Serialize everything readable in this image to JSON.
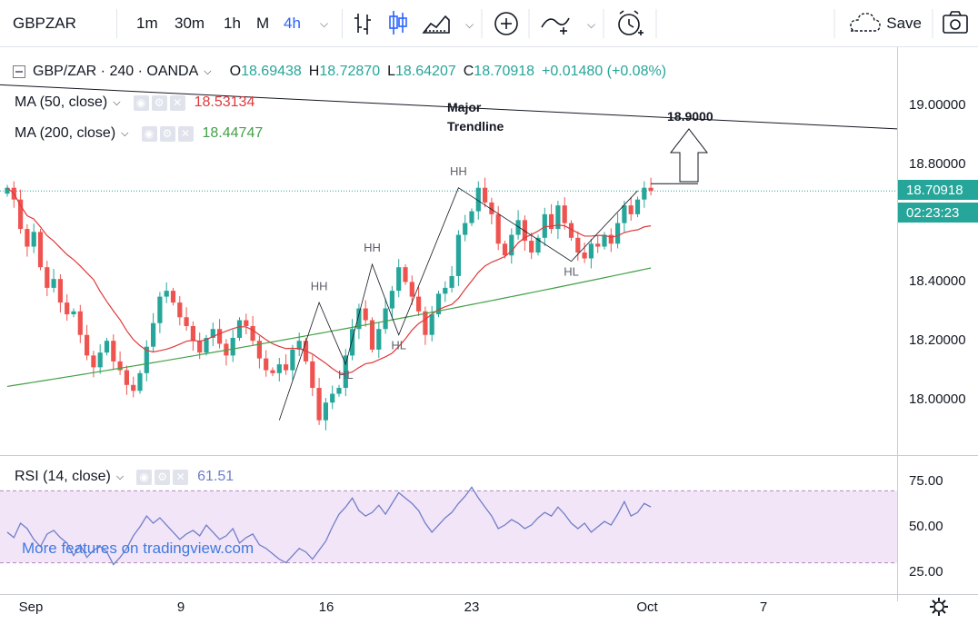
{
  "toolbar": {
    "symbol": "GBPZAR",
    "intervals": [
      "1m",
      "30m",
      "1h",
      "M",
      "4h"
    ],
    "active_interval": "4h",
    "save_label": "Save",
    "icons": [
      "bar-style-icon",
      "candles-icon",
      "area-icon",
      "add-indicator-icon",
      "compare-icon",
      "alert-clock-icon",
      "cloud-icon",
      "camera-icon"
    ]
  },
  "legend": {
    "title": "GBP/ZAR · 240 · OANDA",
    "o_label": "O",
    "o": "18.69438",
    "h_label": "H",
    "h": "18.72870",
    "l_label": "L",
    "l": "18.64207",
    "c_label": "C",
    "c": "18.70918",
    "change": "+0.01480 (+0.08%)"
  },
  "ma50": {
    "label": "MA (50, close)",
    "value": "18.53134",
    "color": "#e0393b"
  },
  "ma200": {
    "label": "MA (200, close)",
    "value": "18.44747",
    "color": "#43a047"
  },
  "price_axis": {
    "ticks": [
      "19.00000",
      "18.80000",
      "18.40000",
      "18.20000",
      "18.00000"
    ],
    "last_price": "18.70918",
    "countdown": "02:23:23"
  },
  "rsi": {
    "label": "RSI (14, close)",
    "value": "61.51",
    "ticks": [
      "75.00",
      "50.00",
      "25.00"
    ]
  },
  "time_axis": {
    "ticks": [
      "Sep",
      "9",
      "16",
      "23",
      "Oct",
      "7"
    ]
  },
  "watermark": "More features on tradingview.com",
  "annotations": {
    "trendline_label": [
      "Major",
      "Trendline"
    ],
    "target": "18.9000",
    "swing_labels": [
      "HH",
      "HL",
      "HH",
      "HL",
      "HH",
      "HL"
    ]
  },
  "colors": {
    "up": "#26a69a",
    "down": "#ef5350",
    "accent": "#2962ff",
    "rsi": "#6f7fc7"
  },
  "chart_data": {
    "type": "candlestick",
    "symbol": "GBP/ZAR",
    "interval": "240",
    "ylim": [
      17.85,
      19.1
    ],
    "closes": [
      18.72,
      18.68,
      18.58,
      18.52,
      18.57,
      18.45,
      18.38,
      18.41,
      18.33,
      18.29,
      18.3,
      18.22,
      18.15,
      18.11,
      18.16,
      18.2,
      18.13,
      18.1,
      18.05,
      18.03,
      18.09,
      18.18,
      18.26,
      18.35,
      18.37,
      18.33,
      18.28,
      18.25,
      18.2,
      18.16,
      18.21,
      18.24,
      18.19,
      18.15,
      18.21,
      18.27,
      18.25,
      18.2,
      18.14,
      18.1,
      18.09,
      18.12,
      18.1,
      18.17,
      18.2,
      18.13,
      18.04,
      17.93,
      17.99,
      18.02,
      18.04,
      18.15,
      18.24,
      18.31,
      18.27,
      18.17,
      18.24,
      18.31,
      18.37,
      18.45,
      18.4,
      18.35,
      18.3,
      18.22,
      18.29,
      18.36,
      18.38,
      18.42,
      18.56,
      18.6,
      18.64,
      18.72,
      18.67,
      18.63,
      18.53,
      18.49,
      18.56,
      18.61,
      18.54,
      18.5,
      18.55,
      18.63,
      18.58,
      18.66,
      18.6,
      18.55,
      18.5,
      18.48,
      18.53,
      18.52,
      18.56,
      18.53,
      18.6,
      18.66,
      18.63,
      18.68,
      18.72,
      18.71
    ],
    "ma50_last": 18.53134,
    "ma200_last": 18.44747,
    "major_trendline": [
      [
        0,
        19.07
      ],
      [
        110,
        18.92
      ]
    ],
    "rsi_series": [
      47,
      44,
      52,
      49,
      43,
      39,
      46,
      48,
      44,
      41,
      34,
      40,
      33,
      37,
      39,
      36,
      29,
      33,
      38,
      45,
      50,
      56,
      52,
      55,
      51,
      47,
      43,
      46,
      48,
      45,
      51,
      47,
      43,
      45,
      49,
      41,
      44,
      46,
      40,
      38,
      35,
      32,
      30,
      34,
      38,
      36,
      32,
      37,
      42,
      50,
      57,
      61,
      66,
      59,
      56,
      58,
      62,
      57,
      63,
      69,
      66,
      63,
      59,
      52,
      47,
      51,
      55,
      58,
      63,
      67,
      72,
      66,
      61,
      56,
      49,
      51,
      54,
      52,
      49,
      51,
      55,
      58,
      56,
      61,
      57,
      52,
      49,
      52,
      47,
      50,
      53,
      51,
      57,
      64,
      56,
      58,
      63,
      61
    ],
    "rsi_last": 61.51
  }
}
